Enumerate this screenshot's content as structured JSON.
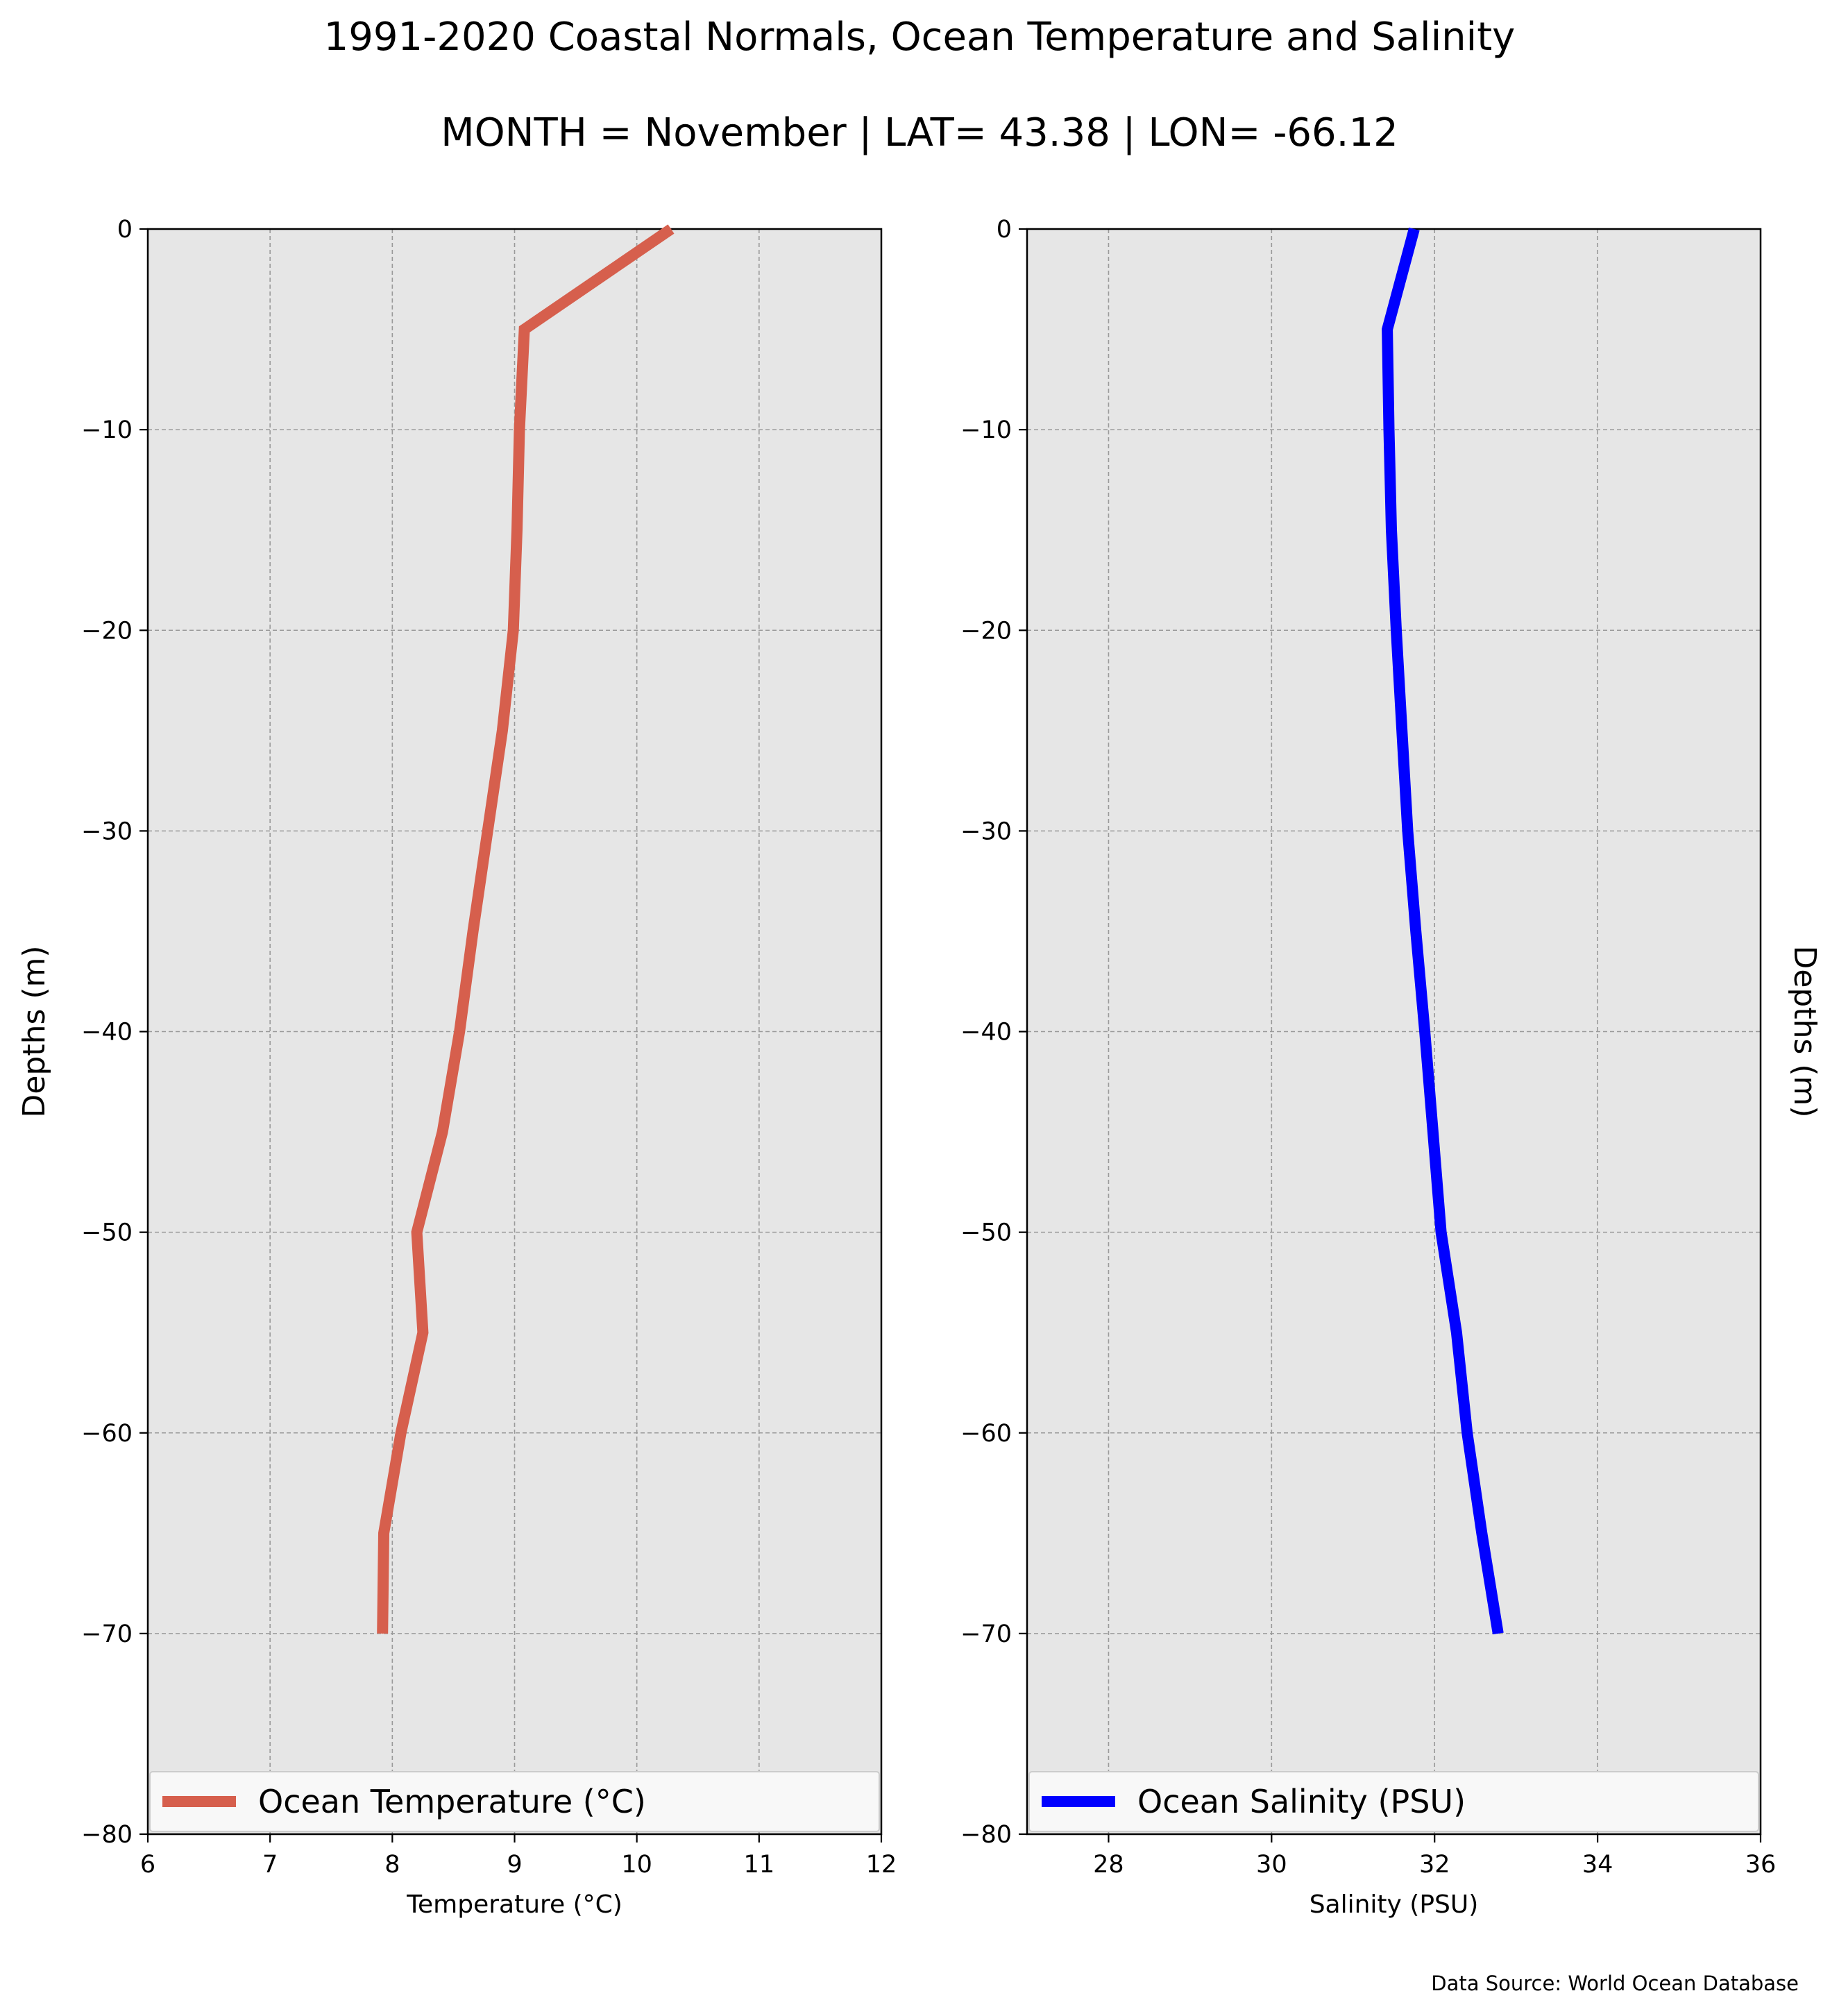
{
  "chart_data": [
    {
      "type": "line",
      "title": "1991-2020 Coastal Normals, Ocean Temperature and Salinity",
      "subtitle": "MONTH = November | LAT= 43.38 | LON= -66.12",
      "xlabel": "Temperature ($^\\circ$C)",
      "xlabel_display": "Temperature (°C)",
      "ylabel": "Depths (m)",
      "xlim": [
        6,
        12
      ],
      "ylim": [
        -80,
        0
      ],
      "xticks": [
        6,
        7,
        8,
        9,
        10,
        11,
        12
      ],
      "yticks": [
        0,
        -10,
        -20,
        -30,
        -40,
        -50,
        -60,
        -70,
        -80
      ],
      "grid": true,
      "legend_position": "bottom",
      "series": [
        {
          "name": "Ocean Temperature (°C)",
          "color": "#d65f4d",
          "points": [
            {
              "x": 10.28,
              "y": 0
            },
            {
              "x": 9.08,
              "y": -5
            },
            {
              "x": 9.04,
              "y": -10
            },
            {
              "x": 9.02,
              "y": -15
            },
            {
              "x": 8.99,
              "y": -20
            },
            {
              "x": 8.9,
              "y": -25
            },
            {
              "x": 8.78,
              "y": -30
            },
            {
              "x": 8.66,
              "y": -35
            },
            {
              "x": 8.55,
              "y": -40
            },
            {
              "x": 8.41,
              "y": -45
            },
            {
              "x": 8.2,
              "y": -50
            },
            {
              "x": 8.25,
              "y": -55
            },
            {
              "x": 8.07,
              "y": -60
            },
            {
              "x": 7.93,
              "y": -65
            },
            {
              "x": 7.92,
              "y": -70
            }
          ]
        }
      ]
    },
    {
      "type": "line",
      "xlabel": "Salinity (PSU)",
      "ylabel": "Depths (m)",
      "xlim": [
        27,
        36
      ],
      "ylim": [
        -80,
        0
      ],
      "xticks": [
        28,
        30,
        32,
        34,
        36
      ],
      "yticks": [
        0,
        -10,
        -20,
        -30,
        -40,
        -50,
        -60,
        -70,
        -80
      ],
      "grid": true,
      "legend_position": "bottom",
      "series": [
        {
          "name": "Ocean Salinity (PSU)",
          "color": "#0000ff",
          "points": [
            {
              "x": 31.75,
              "y": 0
            },
            {
              "x": 31.42,
              "y": -5
            },
            {
              "x": 31.44,
              "y": -10
            },
            {
              "x": 31.47,
              "y": -15
            },
            {
              "x": 31.53,
              "y": -20
            },
            {
              "x": 31.6,
              "y": -25
            },
            {
              "x": 31.67,
              "y": -30
            },
            {
              "x": 31.77,
              "y": -35
            },
            {
              "x": 31.88,
              "y": -40
            },
            {
              "x": 31.98,
              "y": -45
            },
            {
              "x": 32.08,
              "y": -50
            },
            {
              "x": 32.27,
              "y": -55
            },
            {
              "x": 32.4,
              "y": -60
            },
            {
              "x": 32.58,
              "y": -65
            },
            {
              "x": 32.78,
              "y": -70
            }
          ]
        }
      ]
    }
  ],
  "source_note": "Data Source: World Ocean Database"
}
